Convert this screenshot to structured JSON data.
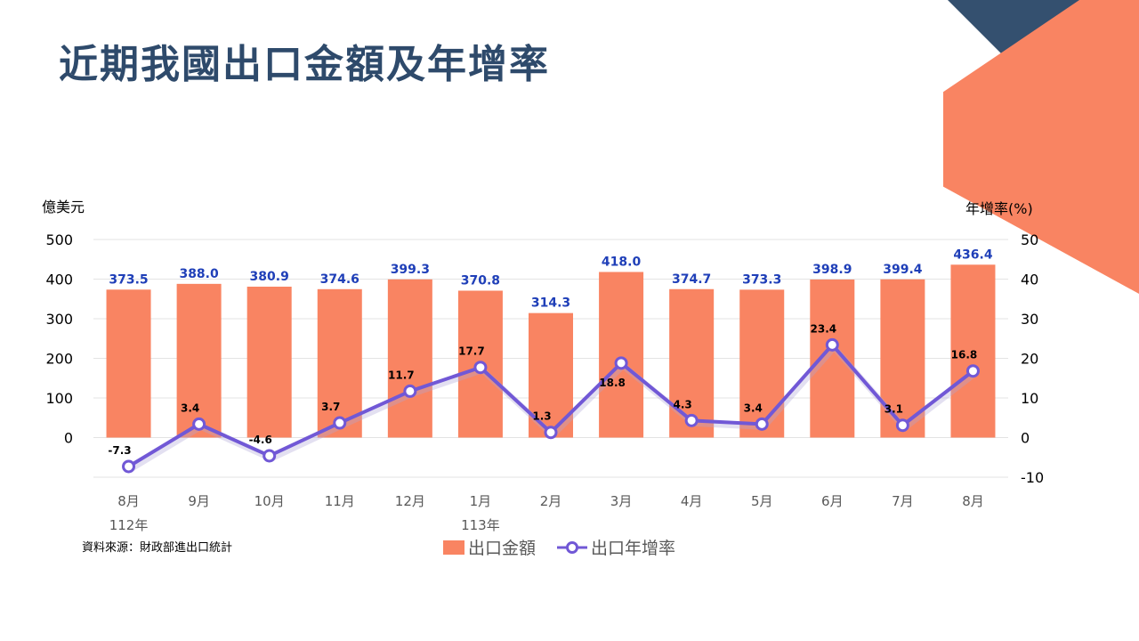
{
  "slide": {
    "title": "近期我國出口金額及年增率",
    "source": "資料來源：財政部進出口統計"
  },
  "colors": {
    "bar": "#f98462",
    "line": "#7158d6",
    "bar_label": "#1f3fb8",
    "title": "#2e4a6b",
    "deco_dark": "#34506f",
    "deco_orange": "#f98462"
  },
  "chart_data": {
    "type": "bar+line",
    "left_axis_unit": "億美元",
    "right_axis_unit": "年增率(%)",
    "categories": [
      "8月",
      "9月",
      "10月",
      "11月",
      "12月",
      "1月",
      "2月",
      "3月",
      "4月",
      "5月",
      "6月",
      "7月",
      "8月"
    ],
    "year_labels": [
      {
        "index": 0,
        "text": "112年"
      },
      {
        "index": 5,
        "text": "113年"
      }
    ],
    "left_ylim": [
      -100,
      500
    ],
    "left_ticks": [
      "500",
      "400",
      "300",
      "200",
      "100",
      "0"
    ],
    "right_ylim": [
      -10,
      50
    ],
    "right_ticks": [
      "50",
      "40",
      "30",
      "20",
      "10",
      "0",
      "-10"
    ],
    "grid": true,
    "legend_position": "bottom",
    "series": [
      {
        "name": "出口金額",
        "type": "bar",
        "axis": "left",
        "values": [
          373.5,
          388.0,
          380.9,
          374.6,
          399.3,
          370.8,
          314.3,
          418.0,
          374.7,
          373.3,
          398.9,
          399.4,
          436.4
        ],
        "labels": [
          "373.5",
          "388.0",
          "380.9",
          "374.6",
          "399.3",
          "370.8",
          "314.3",
          "418.0",
          "374.7",
          "373.3",
          "398.9",
          "399.4",
          "436.4"
        ]
      },
      {
        "name": "出口年增率",
        "type": "line",
        "axis": "right",
        "values": [
          -7.3,
          3.4,
          -4.6,
          3.7,
          11.7,
          17.7,
          1.3,
          18.8,
          4.3,
          3.4,
          23.4,
          3.1,
          16.8
        ],
        "labels": [
          "-7.3",
          "3.4",
          "-4.6",
          "3.7",
          "11.7",
          "17.7",
          "1.3",
          "18.8",
          "4.3",
          "3.4",
          "23.4",
          "3.1",
          "16.8"
        ]
      }
    ]
  }
}
